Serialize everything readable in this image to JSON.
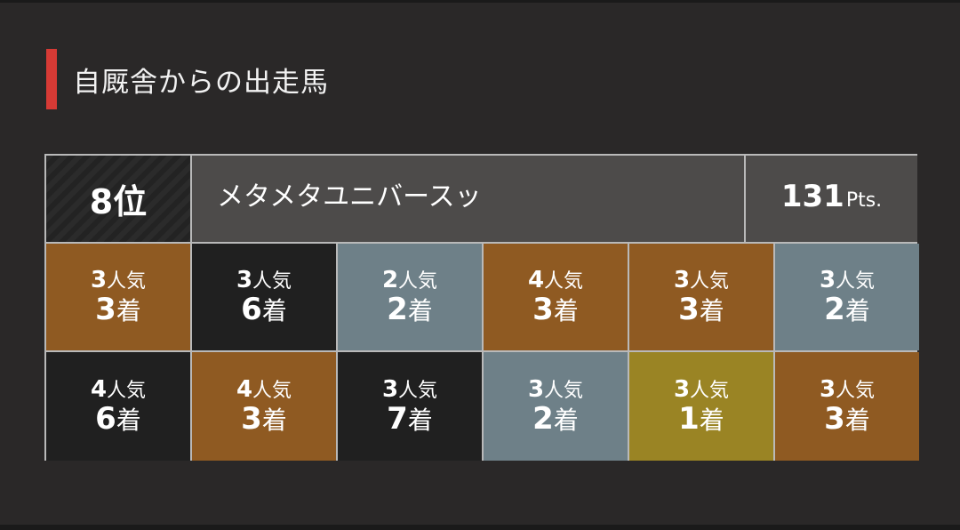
{
  "section": {
    "title": "自厩舎からの出走馬"
  },
  "horse": {
    "rank": "8位",
    "name": "メタメタユニバースッ",
    "points_value": "131",
    "points_unit": "Pts."
  },
  "colors": {
    "first": "#9a8424",
    "second": "#6e8088",
    "third": "#8f5a22",
    "other": "#202020",
    "accent": "#d63a35"
  },
  "results": [
    [
      {
        "popularity": "3",
        "popularity_suffix": "人気",
        "finish": "3",
        "finish_suffix": "着",
        "tier": "third"
      },
      {
        "popularity": "3",
        "popularity_suffix": "人気",
        "finish": "6",
        "finish_suffix": "着",
        "tier": "other"
      },
      {
        "popularity": "2",
        "popularity_suffix": "人気",
        "finish": "2",
        "finish_suffix": "着",
        "tier": "second"
      },
      {
        "popularity": "4",
        "popularity_suffix": "人気",
        "finish": "3",
        "finish_suffix": "着",
        "tier": "third"
      },
      {
        "popularity": "3",
        "popularity_suffix": "人気",
        "finish": "3",
        "finish_suffix": "着",
        "tier": "third"
      },
      {
        "popularity": "3",
        "popularity_suffix": "人気",
        "finish": "2",
        "finish_suffix": "着",
        "tier": "second"
      }
    ],
    [
      {
        "popularity": "4",
        "popularity_suffix": "人気",
        "finish": "6",
        "finish_suffix": "着",
        "tier": "other"
      },
      {
        "popularity": "4",
        "popularity_suffix": "人気",
        "finish": "3",
        "finish_suffix": "着",
        "tier": "third"
      },
      {
        "popularity": "3",
        "popularity_suffix": "人気",
        "finish": "7",
        "finish_suffix": "着",
        "tier": "other"
      },
      {
        "popularity": "3",
        "popularity_suffix": "人気",
        "finish": "2",
        "finish_suffix": "着",
        "tier": "second"
      },
      {
        "popularity": "3",
        "popularity_suffix": "人気",
        "finish": "1",
        "finish_suffix": "着",
        "tier": "first"
      },
      {
        "popularity": "3",
        "popularity_suffix": "人気",
        "finish": "3",
        "finish_suffix": "着",
        "tier": "third"
      }
    ]
  ]
}
